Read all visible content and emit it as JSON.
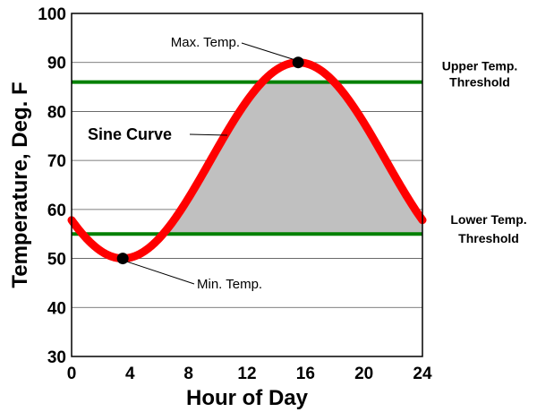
{
  "chart_data": {
    "type": "line",
    "xlabel": "Hour of Day",
    "ylabel": "Temperature, Deg. F",
    "xlim": [
      0,
      24
    ],
    "ylim": [
      30,
      100
    ],
    "xticks": [
      "0",
      "4",
      "8",
      "12",
      "16",
      "20",
      "24"
    ],
    "yticks": [
      "30",
      "40",
      "50",
      "60",
      "70",
      "80",
      "90",
      "100"
    ],
    "grid": "horizontal",
    "curve": {
      "label": "Sine Curve",
      "color": "#ff0000",
      "min_temp": 50,
      "max_temp": 90,
      "min_hour": 3.5,
      "max_hour": 15.5
    },
    "thresholds": [
      {
        "label_line1": "Upper Temp.",
        "label_line2": "Threshold",
        "value": 86,
        "color": "#008000"
      },
      {
        "label_line1": "Lower Temp.",
        "label_line2": "Threshold",
        "value": 55,
        "color": "#008000"
      }
    ],
    "fill_color": "#c0c0c0",
    "points": [
      {
        "label": "Max. Temp.",
        "x": 15.5,
        "y": 90
      },
      {
        "label": "Min. Temp.",
        "x": 3.5,
        "y": 50
      }
    ]
  }
}
